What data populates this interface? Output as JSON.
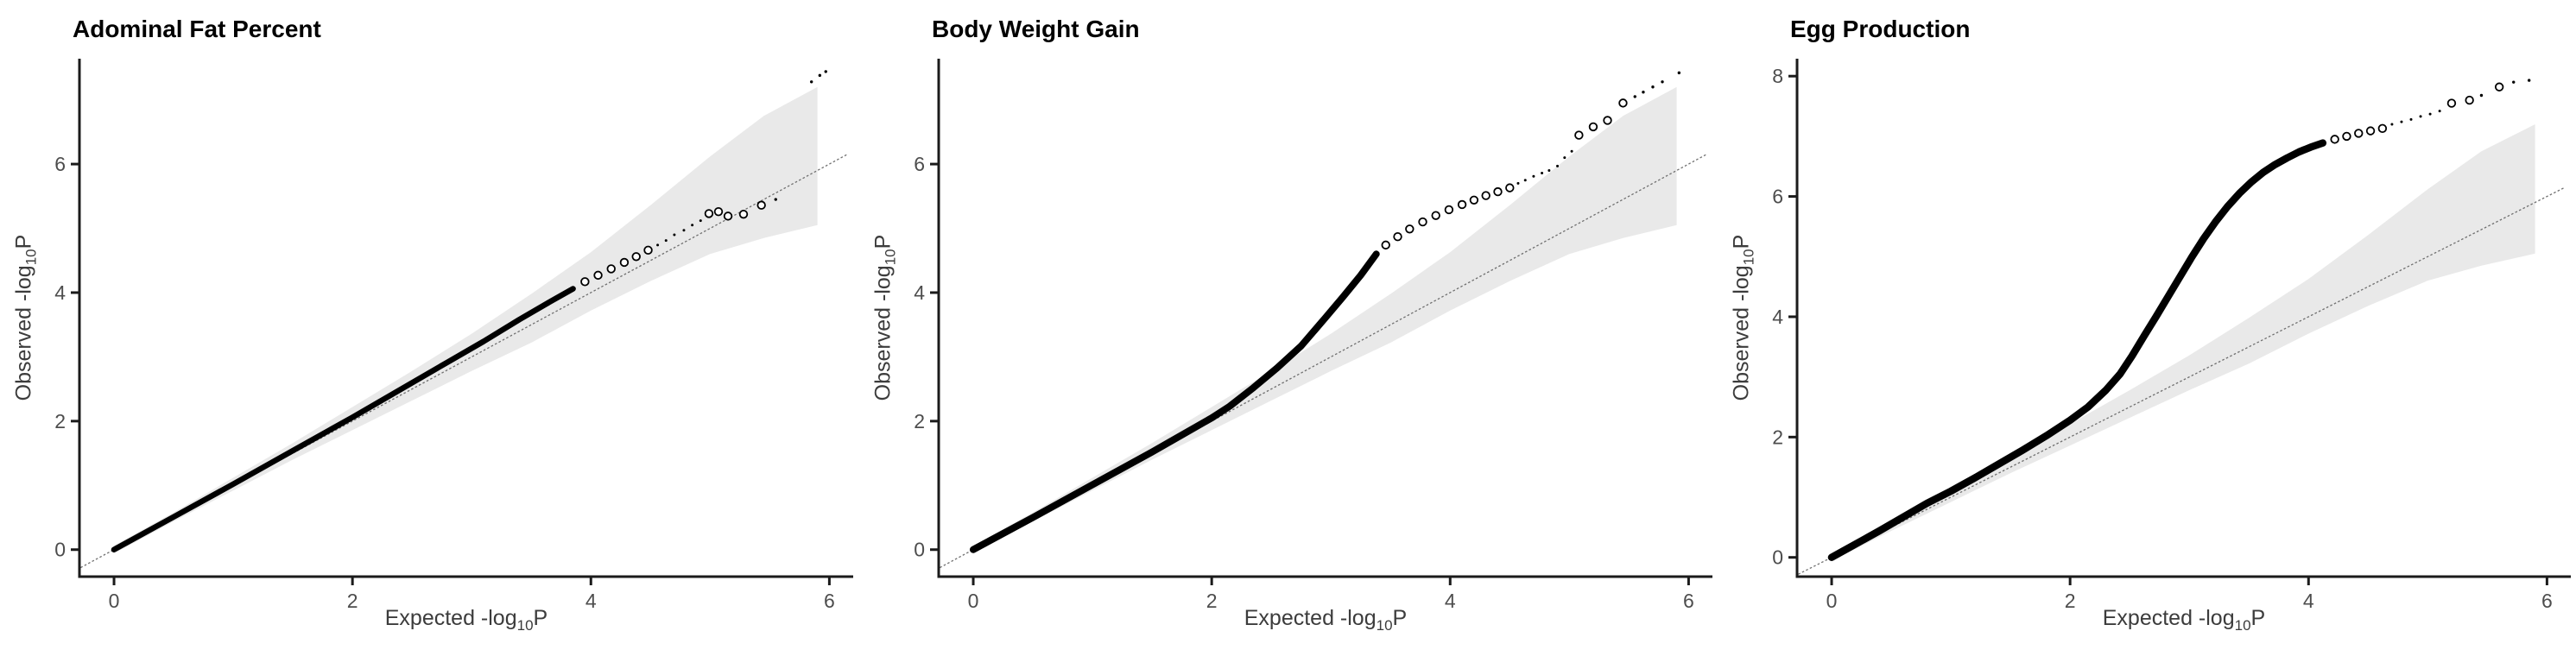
{
  "figure": {
    "background": "#ffffff"
  },
  "style": {
    "point_color": "#000000",
    "band_color": "#e9e9e9",
    "ref_line_color": "#6f6f6f",
    "axis_color": "#1b1b1b",
    "tick_label_color": "#4d4d4d",
    "axis_title_color": "#3c3c3c",
    "title_color": "#000000"
  },
  "chart_data": [
    {
      "type": "scatter",
      "title": "Adominal Fat Percent",
      "xlabel": {
        "prefix": "Expected -log",
        "sub": "10",
        "suffix": "P"
      },
      "ylabel": {
        "prefix": "Observed -log",
        "sub": "10",
        "suffix": "P"
      },
      "x_ticks": [
        0,
        2,
        4,
        6
      ],
      "y_ticks": [
        0,
        2,
        4,
        6
      ],
      "xlim": [
        -0.29,
        6.2
      ],
      "ylim": [
        -0.42,
        7.64
      ],
      "grid": false,
      "legend": false,
      "reference_line": {
        "slope": 1,
        "intercept": 0,
        "from": -0.28,
        "to": 6.15
      },
      "confidence_band": {
        "upper": [
          [
            0,
            0.06
          ],
          [
            0.5,
            0.58
          ],
          [
            1,
            1.12
          ],
          [
            1.5,
            1.66
          ],
          [
            2,
            2.22
          ],
          [
            2.5,
            2.78
          ],
          [
            3,
            3.36
          ],
          [
            3.5,
            3.98
          ],
          [
            4,
            4.63
          ],
          [
            4.5,
            5.36
          ],
          [
            5,
            6.12
          ],
          [
            5.45,
            6.75
          ],
          [
            5.9,
            7.2
          ]
        ],
        "lower": [
          [
            0,
            -0.06
          ],
          [
            0.5,
            0.44
          ],
          [
            1,
            0.92
          ],
          [
            1.5,
            1.4
          ],
          [
            2,
            1.86
          ],
          [
            2.5,
            2.32
          ],
          [
            3,
            2.78
          ],
          [
            3.5,
            3.22
          ],
          [
            4,
            3.72
          ],
          [
            4.5,
            4.18
          ],
          [
            5,
            4.6
          ],
          [
            5.45,
            4.85
          ],
          [
            5.9,
            5.05
          ]
        ]
      },
      "dense_points": [
        [
          0,
          0
        ],
        [
          0.5,
          0.51
        ],
        [
          1,
          1.02
        ],
        [
          1.5,
          1.54
        ],
        [
          2,
          2.06
        ],
        [
          2.4,
          2.49
        ],
        [
          2.8,
          2.92
        ],
        [
          3.1,
          3.24
        ],
        [
          3.4,
          3.58
        ],
        [
          3.65,
          3.85
        ],
        [
          3.85,
          4.06
        ]
      ],
      "dense_stroke": 6.5,
      "chain_circles": [
        [
          3.95,
          4.17
        ],
        [
          4.06,
          4.27
        ],
        [
          4.17,
          4.37
        ],
        [
          4.28,
          4.47
        ],
        [
          4.38,
          4.56
        ],
        [
          4.48,
          4.66
        ]
      ],
      "small_dots": [
        [
          4.56,
          4.74
        ],
        [
          4.63,
          4.81
        ],
        [
          4.7,
          4.9
        ],
        [
          4.78,
          4.97
        ],
        [
          4.85,
          5.05
        ],
        [
          4.92,
          5.12
        ]
      ],
      "open_circles": [
        [
          4.99,
          5.23
        ],
        [
          5.07,
          5.26
        ],
        [
          5.15,
          5.19
        ],
        [
          5.28,
          5.22
        ],
        [
          5.43,
          5.36
        ]
      ],
      "extreme_specks": [
        [
          5.55,
          5.45
        ],
        [
          5.85,
          7.28
        ],
        [
          5.92,
          7.38
        ],
        [
          5.97,
          7.44
        ]
      ]
    },
    {
      "type": "scatter",
      "title": "Body Weight Gain",
      "xlabel": {
        "prefix": "Expected -log",
        "sub": "10",
        "suffix": "P"
      },
      "ylabel": {
        "prefix": "Observed -log",
        "sub": "10",
        "suffix": "P"
      },
      "x_ticks": [
        0,
        2,
        4,
        6
      ],
      "y_ticks": [
        0,
        2,
        4,
        6
      ],
      "xlim": [
        -0.29,
        6.2
      ],
      "ylim": [
        -0.42,
        7.64
      ],
      "grid": false,
      "legend": false,
      "reference_line": {
        "slope": 1,
        "intercept": 0,
        "from": -0.28,
        "to": 6.15
      },
      "confidence_band": {
        "upper": [
          [
            0,
            0.06
          ],
          [
            0.5,
            0.58
          ],
          [
            1,
            1.12
          ],
          [
            1.5,
            1.66
          ],
          [
            2,
            2.22
          ],
          [
            2.5,
            2.78
          ],
          [
            3,
            3.36
          ],
          [
            3.5,
            3.98
          ],
          [
            4,
            4.63
          ],
          [
            4.5,
            5.36
          ],
          [
            5,
            6.12
          ],
          [
            5.45,
            6.75
          ],
          [
            5.9,
            7.2
          ]
        ],
        "lower": [
          [
            0,
            -0.06
          ],
          [
            0.5,
            0.44
          ],
          [
            1,
            0.92
          ],
          [
            1.5,
            1.4
          ],
          [
            2,
            1.86
          ],
          [
            2.5,
            2.32
          ],
          [
            3,
            2.78
          ],
          [
            3.5,
            3.22
          ],
          [
            4,
            3.72
          ],
          [
            4.5,
            4.18
          ],
          [
            5,
            4.6
          ],
          [
            5.45,
            4.85
          ],
          [
            5.9,
            5.05
          ]
        ]
      },
      "dense_points": [
        [
          0,
          0
        ],
        [
          0.5,
          0.5
        ],
        [
          1,
          1.01
        ],
        [
          1.5,
          1.52
        ],
        [
          2,
          2.05
        ],
        [
          2.15,
          2.23
        ],
        [
          2.35,
          2.52
        ],
        [
          2.55,
          2.83
        ],
        [
          2.75,
          3.17
        ],
        [
          2.95,
          3.6
        ],
        [
          3.1,
          3.93
        ],
        [
          3.25,
          4.27
        ],
        [
          3.38,
          4.6
        ]
      ],
      "dense_stroke": 8,
      "chain_circles": [
        [
          3.46,
          4.74
        ],
        [
          3.56,
          4.87
        ],
        [
          3.66,
          4.99
        ],
        [
          3.77,
          5.1
        ],
        [
          3.88,
          5.2
        ],
        [
          3.99,
          5.29
        ],
        [
          4.1,
          5.37
        ],
        [
          4.2,
          5.44
        ],
        [
          4.3,
          5.51
        ],
        [
          4.4,
          5.57
        ],
        [
          4.5,
          5.63
        ]
      ],
      "small_dots": [
        [
          4.57,
          5.7
        ],
        [
          4.63,
          5.75
        ],
        [
          4.7,
          5.81
        ],
        [
          4.77,
          5.86
        ],
        [
          4.83,
          5.9
        ],
        [
          4.9,
          5.97
        ],
        [
          4.96,
          6.1
        ],
        [
          5.02,
          6.2
        ]
      ],
      "open_circles": [
        [
          5.08,
          6.45
        ],
        [
          5.2,
          6.58
        ],
        [
          5.32,
          6.68
        ],
        [
          5.45,
          6.95
        ]
      ],
      "extreme_specks": [
        [
          5.55,
          7.05
        ],
        [
          5.62,
          7.12
        ],
        [
          5.7,
          7.2
        ],
        [
          5.78,
          7.28
        ],
        [
          5.92,
          7.42
        ]
      ]
    },
    {
      "type": "scatter",
      "title": "Egg Production",
      "xlabel": {
        "prefix": "Expected -log",
        "sub": "10",
        "suffix": "P"
      },
      "ylabel": {
        "prefix": "Observed -log",
        "sub": "10",
        "suffix": "P"
      },
      "x_ticks": [
        0,
        2,
        4,
        6
      ],
      "y_ticks": [
        0,
        2,
        4,
        6,
        8
      ],
      "xlim": [
        -0.29,
        6.2
      ],
      "ylim": [
        -0.32,
        8.29
      ],
      "grid": false,
      "legend": false,
      "reference_line": {
        "slope": 1,
        "intercept": 0,
        "from": -0.28,
        "to": 6.15
      },
      "confidence_band": {
        "upper": [
          [
            0,
            0.06
          ],
          [
            0.5,
            0.58
          ],
          [
            1,
            1.12
          ],
          [
            1.5,
            1.66
          ],
          [
            2,
            2.22
          ],
          [
            2.5,
            2.78
          ],
          [
            3,
            3.36
          ],
          [
            3.5,
            3.98
          ],
          [
            4,
            4.63
          ],
          [
            4.5,
            5.36
          ],
          [
            5,
            6.12
          ],
          [
            5.45,
            6.75
          ],
          [
            5.9,
            7.2
          ]
        ],
        "lower": [
          [
            0,
            -0.06
          ],
          [
            0.5,
            0.44
          ],
          [
            1,
            0.92
          ],
          [
            1.5,
            1.4
          ],
          [
            2,
            1.86
          ],
          [
            2.5,
            2.32
          ],
          [
            3,
            2.78
          ],
          [
            3.5,
            3.22
          ],
          [
            4,
            3.72
          ],
          [
            4.5,
            4.18
          ],
          [
            5,
            4.6
          ],
          [
            5.45,
            4.85
          ],
          [
            5.9,
            5.05
          ]
        ]
      },
      "dense_points": [
        [
          0,
          0
        ],
        [
          0.4,
          0.44
        ],
        [
          0.8,
          0.9
        ],
        [
          1,
          1.1
        ],
        [
          1.2,
          1.32
        ],
        [
          1.4,
          1.55
        ],
        [
          1.6,
          1.78
        ],
        [
          1.8,
          2.02
        ],
        [
          2,
          2.28
        ],
        [
          2.15,
          2.5
        ],
        [
          2.3,
          2.78
        ],
        [
          2.42,
          3.05
        ],
        [
          2.52,
          3.35
        ],
        [
          2.62,
          3.68
        ],
        [
          2.72,
          4.0
        ],
        [
          2.82,
          4.33
        ],
        [
          2.92,
          4.66
        ],
        [
          3.02,
          4.99
        ],
        [
          3.12,
          5.3
        ],
        [
          3.22,
          5.58
        ],
        [
          3.32,
          5.83
        ],
        [
          3.42,
          6.05
        ],
        [
          3.52,
          6.24
        ],
        [
          3.62,
          6.4
        ],
        [
          3.72,
          6.53
        ],
        [
          3.82,
          6.64
        ],
        [
          3.92,
          6.74
        ],
        [
          4.02,
          6.82
        ],
        [
          4.12,
          6.89
        ]
      ],
      "dense_stroke": 8.5,
      "chain_circles": [
        [
          4.22,
          6.95
        ],
        [
          4.32,
          7.0
        ],
        [
          4.42,
          7.05
        ],
        [
          4.52,
          7.09
        ],
        [
          4.62,
          7.13
        ]
      ],
      "small_dots": [
        [
          4.7,
          7.2
        ],
        [
          4.78,
          7.24
        ],
        [
          4.86,
          7.28
        ],
        [
          4.94,
          7.33
        ],
        [
          5.02,
          7.37
        ],
        [
          5.1,
          7.42
        ]
      ],
      "open_circles": [
        [
          5.2,
          7.55
        ],
        [
          5.35,
          7.6
        ],
        [
          5.6,
          7.82
        ]
      ],
      "extreme_specks": [
        [
          5.45,
          7.68
        ],
        [
          5.72,
          7.9
        ],
        [
          5.85,
          7.93
        ]
      ]
    }
  ]
}
